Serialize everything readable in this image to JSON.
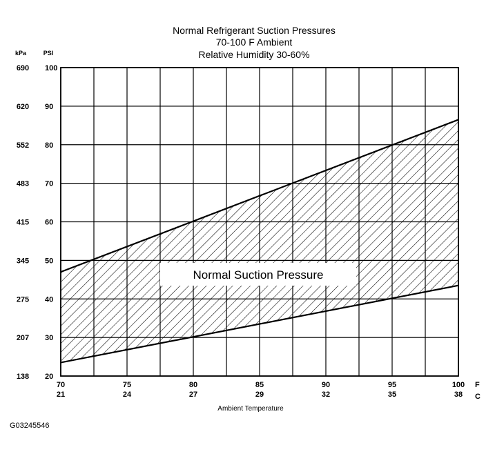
{
  "chart_data": {
    "type": "area",
    "title_lines": [
      "Normal Refrigerant Suction Pressures",
      "70-100 F Ambient",
      "Relative Humidity 30-60%"
    ],
    "xlabel": "Ambient Temperature",
    "x_unit_primary": "F",
    "x_unit_secondary": "C",
    "y_unit_left": "kPa",
    "y_unit_right": "PSI",
    "xlim": [
      70,
      100
    ],
    "ylim": [
      20,
      100
    ],
    "x_ticks_f": [
      "70",
      "75",
      "80",
      "85",
      "90",
      "95",
      "100"
    ],
    "x_ticks_c": [
      "21",
      "24",
      "27",
      "29",
      "32",
      "35",
      "38"
    ],
    "y_ticks_psi": [
      "100",
      "90",
      "80",
      "70",
      "60",
      "50",
      "40",
      "30",
      "20"
    ],
    "y_ticks_kpa": [
      "690",
      "620",
      "552",
      "483",
      "415",
      "345",
      "275",
      "207",
      "138"
    ],
    "x_gridlines": [
      70,
      72.5,
      75,
      77.5,
      80,
      82.5,
      85,
      87.5,
      90,
      92.5,
      95,
      97.5,
      100
    ],
    "y_gridlines": [
      20,
      30,
      40,
      50,
      60,
      70,
      80,
      90,
      100
    ],
    "grid": true,
    "band": {
      "name": "Normal Suction Pressure",
      "upper": {
        "x": [
          70,
          100
        ],
        "y": [
          47,
          86.5
        ]
      },
      "lower": {
        "x": [
          70,
          100
        ],
        "y": [
          23.5,
          43.5
        ]
      },
      "fill": "diagonal-hatch"
    },
    "figure_id": "G03245546"
  }
}
